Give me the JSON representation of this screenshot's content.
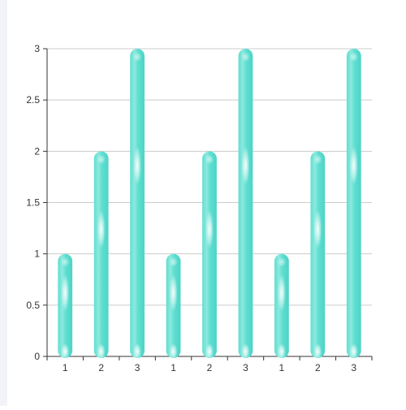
{
  "colors": {
    "bar": "#5ddfd1",
    "bar_highlight": "#ffffff",
    "axis": "#333333",
    "grid": "#cccccc",
    "label": "#333333",
    "side_strip": "#f1f3f8"
  },
  "chart_data": {
    "type": "bar",
    "categories": [
      "1",
      "2",
      "3",
      "1",
      "2",
      "3",
      "1",
      "2",
      "3"
    ],
    "series": [
      {
        "values": [
          1,
          2,
          3,
          1,
          2,
          3,
          1,
          2,
          3
        ]
      }
    ],
    "title": "",
    "xlabel": "",
    "ylabel": "",
    "ylim": [
      0,
      3
    ],
    "yticks": [
      "0",
      "0.5",
      "1",
      "1.5",
      "2",
      "2.5",
      "3"
    ],
    "grid": true,
    "legend": "none",
    "bar_style": "rounded-capsule"
  }
}
